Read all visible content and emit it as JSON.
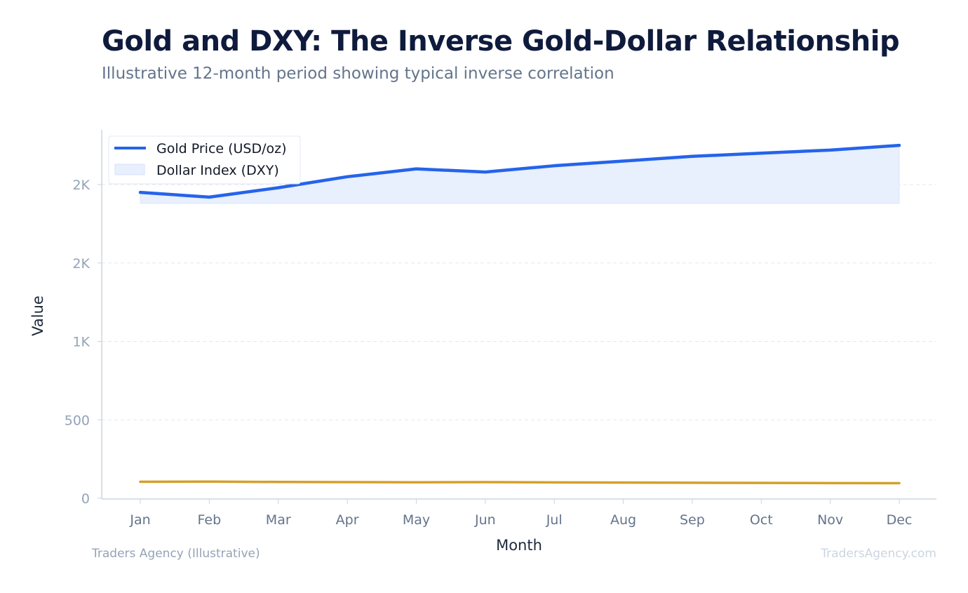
{
  "header": {
    "title": "Gold and DXY: The Inverse Gold-Dollar Relationship",
    "subtitle": "Illustrative 12-month period showing typical inverse correlation"
  },
  "footer": {
    "source": "Traders Agency (Illustrative)",
    "site": "TradersAgency.com"
  },
  "colors": {
    "gold_line": "#2563eb",
    "gold_fill": "#e8effd",
    "dxy_line": "#d4a02a",
    "grid": "#e2e8f0",
    "axis": "#cbd5e1"
  },
  "chart_data": {
    "type": "line",
    "xlabel": "Month",
    "ylabel": "Value",
    "ylim": [
      0,
      2350
    ],
    "yticks": [
      0,
      500,
      1000,
      1500,
      2000
    ],
    "ytick_labels": [
      "0",
      "500",
      "1K",
      "2K",
      "2K"
    ],
    "categories": [
      "Jan",
      "Feb",
      "Mar",
      "Apr",
      "May",
      "Jun",
      "Jul",
      "Aug",
      "Sep",
      "Oct",
      "Nov",
      "Dec"
    ],
    "fill_base": 1880,
    "legend_position": "top-left",
    "series": [
      {
        "name": "Gold Price (USD/oz)",
        "style": "line-with-area",
        "values": [
          1950,
          1920,
          1980,
          2050,
          2100,
          2080,
          2120,
          2150,
          2180,
          2200,
          2220,
          2250
        ]
      },
      {
        "name": "Dollar Index (DXY)",
        "style": "line",
        "values": [
          105,
          106,
          104,
          103,
          102,
          103,
          101,
          100,
          99,
          98,
          97,
          96
        ]
      }
    ]
  }
}
